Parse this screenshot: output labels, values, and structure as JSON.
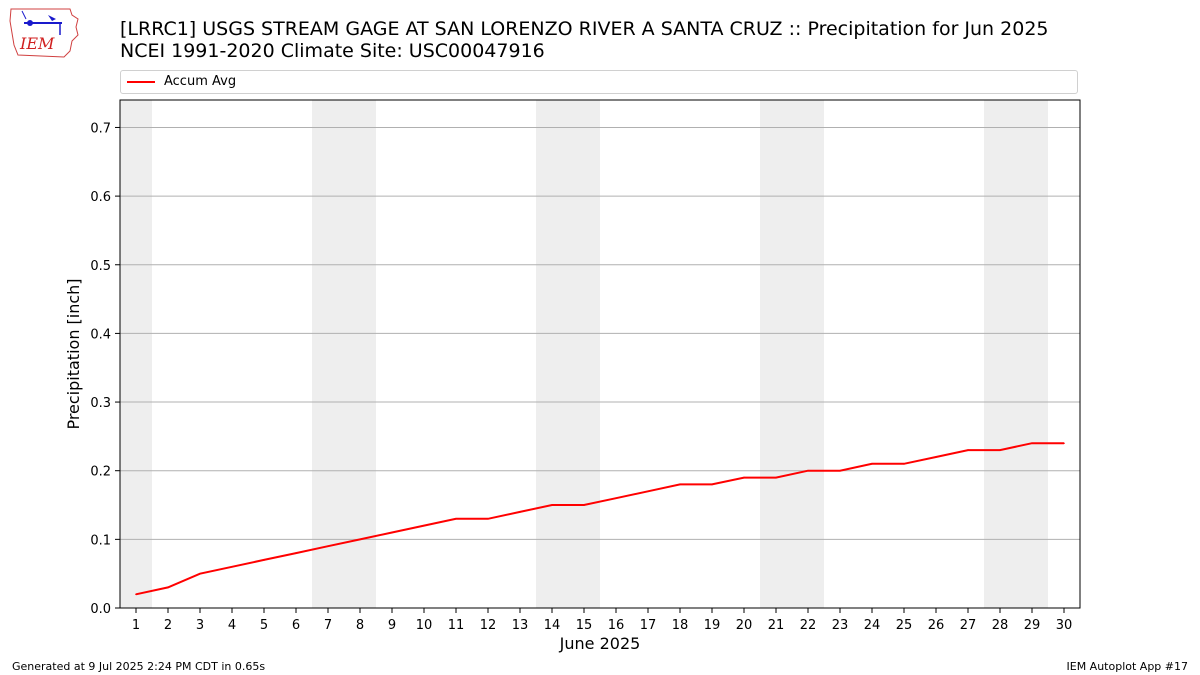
{
  "logo": {
    "text": "IEM"
  },
  "title": {
    "line1": "[LRRC1] USGS STREAM GAGE  AT SAN LORENZO RIVER A SANTA CRUZ :: Precipitation for Jun 2025",
    "line2": "NCEI 1991-2020 Climate Site: USC00047916"
  },
  "footer": {
    "left": "Generated at 9 Jul 2025 2:24 PM CDT in 0.65s",
    "right": "IEM Autoplot App #17"
  },
  "colors": {
    "series": "#ff0000",
    "weekend_band": "#eeeeee",
    "grid": "#b0b0b0"
  },
  "chart_data": {
    "type": "line",
    "xlabel": "June 2025",
    "ylabel": "Precipitation [inch]",
    "xlim": [
      0.5,
      30.5
    ],
    "ylim": [
      0,
      0.74
    ],
    "yticks": [
      0.0,
      0.1,
      0.2,
      0.3,
      0.4,
      0.5,
      0.6,
      0.7
    ],
    "grid": "horizontal",
    "legend": "top",
    "weekend_days": [
      1,
      7,
      8,
      14,
      15,
      21,
      22,
      28,
      29
    ],
    "x": [
      1,
      2,
      3,
      4,
      5,
      6,
      7,
      8,
      9,
      10,
      11,
      12,
      13,
      14,
      15,
      16,
      17,
      18,
      19,
      20,
      21,
      22,
      23,
      24,
      25,
      26,
      27,
      28,
      29,
      30
    ],
    "series": [
      {
        "name": "Accum Avg",
        "color": "#ff0000",
        "values": [
          0.02,
          0.03,
          0.05,
          0.06,
          0.07,
          0.08,
          0.09,
          0.1,
          0.11,
          0.12,
          0.13,
          0.13,
          0.14,
          0.15,
          0.15,
          0.16,
          0.17,
          0.18,
          0.18,
          0.19,
          0.19,
          0.2,
          0.2,
          0.21,
          0.21,
          0.22,
          0.23,
          0.23,
          0.24,
          0.24
        ]
      }
    ]
  }
}
